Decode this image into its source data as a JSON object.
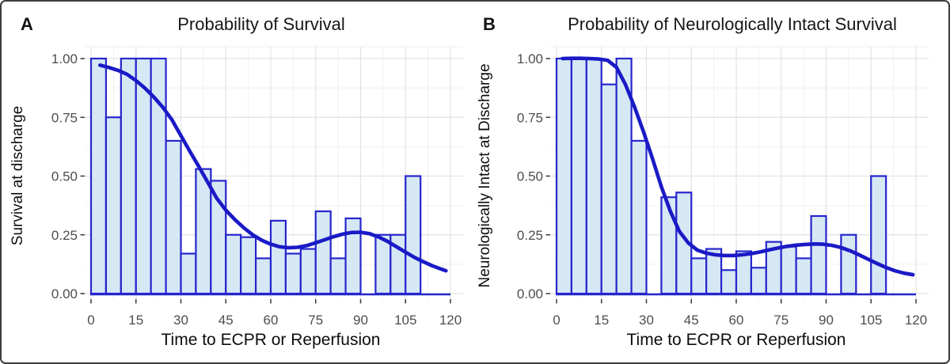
{
  "colors": {
    "bar_fill": "#d6e8f4",
    "bar_stroke": "#2626cd",
    "curve": "#1a1ac6",
    "grid_major": "#e2e2e2",
    "grid_minor": "#f0f0f0",
    "tick_mark": "#3a3a3a",
    "tick_text": "#4d4d4d",
    "frame": "#3c3c3c"
  },
  "chart_data": [
    {
      "type": "bar",
      "subtype": "histogram_with_smoothed_curve",
      "panel_label": "A",
      "title": "Probability of Survival",
      "xlabel": "Time to ECPR or Reperfusion",
      "ylabel": "Survival at discharge",
      "xlim": [
        0,
        120
      ],
      "ylim": [
        0,
        1
      ],
      "grid": true,
      "legend": false,
      "xtick_values": [
        0,
        15,
        30,
        45,
        60,
        75,
        90,
        105,
        120
      ],
      "xtick_labels": [
        "0",
        "15",
        "30",
        "45",
        "60",
        "75",
        "90",
        "105",
        "120"
      ],
      "ytick_values": [
        0,
        0.25,
        0.5,
        0.75,
        1
      ],
      "ytick_labels": [
        "0.00",
        "0.25",
        "0.50",
        "0.75",
        "1.00"
      ],
      "bin_width": 5,
      "bin_start": 0,
      "bar_values": [
        1.0,
        0.75,
        1.0,
        1.0,
        1.0,
        0.65,
        0.17,
        0.53,
        0.48,
        0.25,
        0.24,
        0.15,
        0.31,
        0.17,
        0.19,
        0.35,
        0.15,
        0.32,
        null,
        0.25,
        0.25,
        0.5,
        null,
        null
      ],
      "smooth_line": {
        "x": [
          3,
          6,
          9,
          12,
          15,
          18,
          21,
          24,
          27,
          30,
          33,
          36,
          39,
          42,
          45,
          48,
          51,
          54,
          57,
          60,
          63,
          66,
          69,
          72,
          75,
          78,
          81,
          84,
          87,
          90,
          93,
          96,
          99,
          102,
          105,
          108,
          111,
          114,
          116.5,
          118.5
        ],
        "y": [
          0.972,
          0.962,
          0.95,
          0.933,
          0.906,
          0.874,
          0.836,
          0.792,
          0.74,
          0.672,
          0.605,
          0.54,
          0.473,
          0.405,
          0.355,
          0.315,
          0.28,
          0.25,
          0.227,
          0.21,
          0.199,
          0.195,
          0.197,
          0.204,
          0.216,
          0.229,
          0.242,
          0.253,
          0.26,
          0.261,
          0.255,
          0.241,
          0.222,
          0.199,
          0.176,
          0.154,
          0.135,
          0.118,
          0.106,
          0.097
        ]
      }
    },
    {
      "type": "bar",
      "subtype": "histogram_with_smoothed_curve",
      "panel_label": "B",
      "title": "Probability of Neurologically Intact Survival",
      "xlabel": "Time to ECPR or Reperfusion",
      "ylabel": "Neurologically Intact at Discharge",
      "xlim": [
        0,
        120
      ],
      "ylim": [
        0,
        1
      ],
      "grid": true,
      "legend": false,
      "xtick_values": [
        0,
        15,
        30,
        45,
        60,
        75,
        90,
        105,
        120
      ],
      "xtick_labels": [
        "0",
        "15",
        "30",
        "45",
        "60",
        "75",
        "90",
        "105",
        "120"
      ],
      "ytick_values": [
        0,
        0.25,
        0.5,
        0.75,
        1
      ],
      "ytick_labels": [
        "0.00",
        "0.25",
        "0.50",
        "0.75",
        "1.00"
      ],
      "bin_width": 5,
      "bin_start": 0,
      "bar_values": [
        1.0,
        1.0,
        1.0,
        0.89,
        1.0,
        0.65,
        null,
        0.41,
        0.43,
        0.15,
        0.19,
        0.1,
        0.18,
        0.11,
        0.22,
        0.2,
        0.15,
        0.33,
        null,
        0.25,
        null,
        0.5,
        null,
        null
      ],
      "smooth_line": {
        "x": [
          2,
          5,
          8,
          11,
          14,
          17,
          20,
          23,
          26,
          29,
          32,
          35,
          38,
          41,
          44,
          47,
          50,
          53,
          56,
          59,
          62,
          65,
          68,
          71,
          74,
          77,
          80,
          83,
          86,
          89,
          92,
          95,
          98,
          101,
          104,
          107,
          110,
          113,
          116,
          119
        ],
        "y": [
          1.0,
          1.001,
          1.001,
          1.0,
          0.998,
          0.993,
          0.963,
          0.89,
          0.795,
          0.69,
          0.575,
          0.455,
          0.35,
          0.265,
          0.215,
          0.185,
          0.172,
          0.165,
          0.162,
          0.162,
          0.165,
          0.17,
          0.177,
          0.186,
          0.194,
          0.201,
          0.206,
          0.209,
          0.211,
          0.21,
          0.205,
          0.196,
          0.182,
          0.165,
          0.146,
          0.128,
          0.111,
          0.097,
          0.087,
          0.08
        ]
      }
    }
  ]
}
